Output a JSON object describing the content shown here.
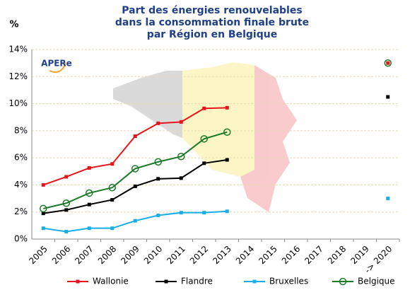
{
  "chart_data": {
    "type": "line",
    "title": [
      "Part des énergies renouvelables",
      "dans la consommation finale brute",
      "par Région en Belgique"
    ],
    "y_label": "%",
    "logo": "APERe",
    "categories": [
      "2005",
      "2006",
      "2007",
      "2008",
      "2009",
      "2010",
      "2011",
      "2012",
      "2013",
      "2014",
      "2015",
      "2016",
      "2017",
      "2018",
      "2019",
      "-> 2020"
    ],
    "series": [
      {
        "name": "Wallonie",
        "color": "#e8141b",
        "marker": "square",
        "values": [
          4.0,
          4.6,
          5.25,
          5.55,
          7.6,
          8.55,
          8.65,
          9.65,
          9.7,
          null,
          null,
          null,
          null,
          null,
          null,
          13.0
        ]
      },
      {
        "name": "Flandre",
        "color": "#000000",
        "marker": "square",
        "values": [
          1.9,
          2.15,
          2.55,
          2.9,
          3.9,
          4.45,
          4.5,
          5.6,
          5.85,
          null,
          null,
          null,
          null,
          null,
          null,
          10.5
        ]
      },
      {
        "name": "Bruxelles",
        "color": "#1aaee6",
        "marker": "square",
        "values": [
          0.8,
          0.55,
          0.8,
          0.8,
          1.35,
          1.75,
          1.95,
          1.95,
          2.05,
          null,
          null,
          null,
          null,
          null,
          null,
          3.0
        ]
      },
      {
        "name": "Belgique",
        "color": "#1a7a2a",
        "marker": "circle",
        "values": [
          2.25,
          2.65,
          3.4,
          3.8,
          5.2,
          5.7,
          6.1,
          7.4,
          7.9,
          null,
          null,
          null,
          null,
          null,
          null,
          13.0
        ]
      }
    ],
    "ylim": [
      0,
      14
    ],
    "yticks": [
      {
        "value": 0,
        "label": "0%"
      },
      {
        "value": 2,
        "label": "2%"
      },
      {
        "value": 4,
        "label": "4%"
      },
      {
        "value": 6,
        "label": "6%"
      },
      {
        "value": 8,
        "label": "8%"
      },
      {
        "value": 10,
        "label": "10%"
      },
      {
        "value": 12,
        "label": "12%"
      },
      {
        "value": 14,
        "label": "14%"
      }
    ],
    "grid": true
  }
}
